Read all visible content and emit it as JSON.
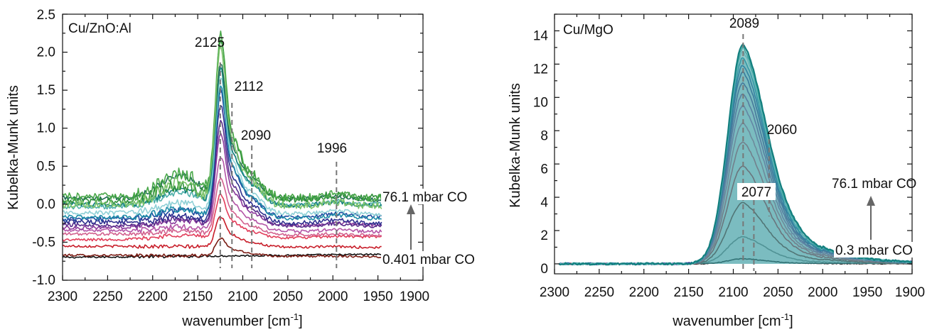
{
  "chart_data": [
    {
      "type": "line",
      "panel_label": "Cu/ZnO:Al",
      "xlabel_main": "wavenumber [cm",
      "xlabel_sup": "-1",
      "xlabel_end": "]",
      "ylabel": "Kubelka-Munk units",
      "xlim": [
        2300,
        1900
      ],
      "ylim": [
        -1.0,
        2.5
      ],
      "x_reversed": true,
      "x_ticks": [
        "2300",
        "2250",
        "2200",
        "2150",
        "2100",
        "2050",
        "2000",
        "1950",
        "1900"
      ],
      "y_ticks": [
        "-1.0",
        "-0.5",
        "0.0",
        "0.5",
        "1.0",
        "1.5",
        "2.0",
        "2.5"
      ],
      "peak_labels": [
        "2125",
        "2112",
        "2090",
        "1996"
      ],
      "peak_positions": [
        2125,
        2112,
        2090,
        1996
      ],
      "annotations": {
        "high": "76.1 mbar CO",
        "low": "0.401 mbar CO"
      },
      "series_colors": [
        "#111111",
        "#7a1c14",
        "#c81e2a",
        "#e23d5a",
        "#d2608e",
        "#b354a6",
        "#8b3a9c",
        "#5a2e8c",
        "#2f2f8f",
        "#1e4aa0",
        "#1f8da8",
        "#8fd0d6",
        "#4fb0aa",
        "#137f7f",
        "#1f6d54",
        "#2f8f3a",
        "#4aa84a",
        "#7cc36a"
      ],
      "series_baselines": [
        -0.7,
        -0.67,
        -0.55,
        -0.47,
        -0.39,
        -0.34,
        -0.31,
        -0.27,
        -0.23,
        -0.2,
        -0.17,
        -0.11,
        -0.04,
        0.0,
        0.08,
        0.04,
        0.1,
        0.0
      ],
      "series_peaks": [
        0.0,
        0.2,
        0.35,
        0.5,
        0.65,
        0.85,
        1.05,
        1.2,
        1.35,
        1.45,
        1.5,
        1.55,
        1.55,
        1.55,
        1.52,
        1.85,
        1.85,
        1.8
      ],
      "series_shoulder": [
        0.0,
        0.0,
        0.0,
        0.05,
        0.05,
        0.05,
        0.08,
        0.08,
        0.08,
        0.1,
        0.12,
        0.14,
        0.18,
        0.2,
        0.3,
        0.2,
        0.32,
        0.28
      ],
      "shoulder_center": 2170,
      "peak_center": 2125,
      "grid": false
    },
    {
      "type": "line",
      "panel_label": "Cu/MgO",
      "xlabel_main": "wavenumber [cm",
      "xlabel_sup": "-1",
      "xlabel_end": "]",
      "ylabel": "Kubelka-Munk units",
      "xlim": [
        2300,
        1900
      ],
      "ylim": [
        -0.6,
        15.0
      ],
      "x_reversed": true,
      "x_ticks": [
        "2300",
        "2250",
        "2200",
        "2150",
        "2100",
        "2050",
        "2000",
        "1950",
        "1900"
      ],
      "y_ticks": [
        "0",
        "2",
        "4",
        "6",
        "8",
        "10",
        "12",
        "14"
      ],
      "peak_labels": [
        "2089",
        "2060",
        "2077"
      ],
      "peak_positions": [
        2089,
        2060,
        2077
      ],
      "annotations": {
        "high": "76.1 mbar CO",
        "low": "0.3 mbar CO"
      },
      "series_colors": [
        "#111111",
        "#777777",
        "#7a1c14",
        "#c81e2a",
        "#e23d5a",
        "#d2608e",
        "#b354a6",
        "#8b3a9c",
        "#5a2e8c",
        "#2f2f8f",
        "#1e4aa0",
        "#1f8da8",
        "#8fd0d6",
        "#4fb0aa",
        "#137f7f"
      ],
      "series_peaks": [
        0.3,
        1.6,
        3.6,
        5.8,
        7.2,
        8.3,
        9.3,
        10.0,
        10.6,
        11.2,
        11.6,
        12.0,
        12.3,
        12.5,
        12.7
      ],
      "series_tail": [
        0.02,
        0.1,
        0.25,
        0.4,
        0.5,
        0.6,
        0.7,
        0.85,
        1.0,
        1.15,
        1.3,
        1.45,
        1.6,
        1.75,
        1.9
      ],
      "peak_center": 2089,
      "grid": false
    }
  ]
}
